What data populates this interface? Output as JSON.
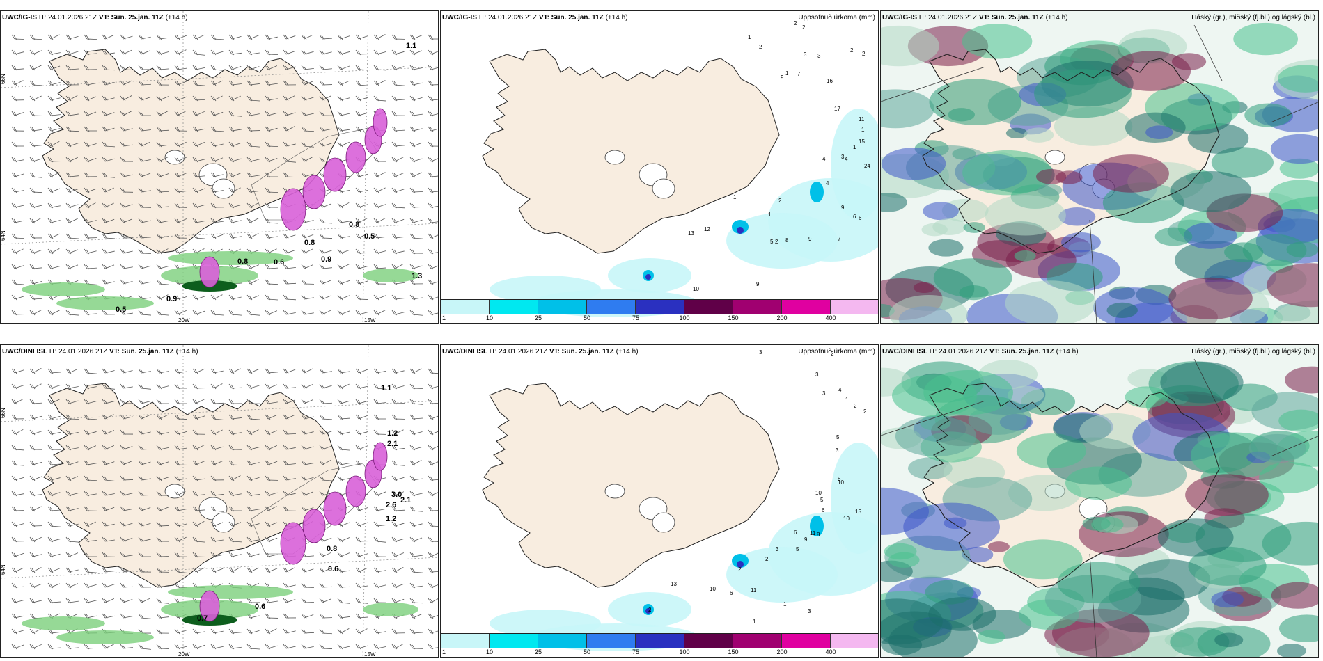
{
  "panels": [
    {
      "id": "wind-top",
      "model": "UWC/IG-IS",
      "it": "IT: 24.01.2026 21Z",
      "vt_label": "VT:",
      "vt": "Sun. 25.jan. 11Z",
      "lead": "(+14 h)",
      "right_title": "",
      "kind": "wind",
      "values": [
        "0.8",
        "0.6",
        "0.9",
        "0.8",
        "0.8",
        "0.5",
        "0.9",
        "0.5",
        "1.3",
        "1.1"
      ],
      "lat_labels": [
        "66N",
        "64N",
        "66N",
        "64N"
      ],
      "lon_labels": [
        "20W",
        "15W"
      ]
    },
    {
      "id": "precip-top",
      "model": "UWC/IG-IS",
      "it": "IT: 24.01.2026 21Z",
      "vt_label": "VT:",
      "vt": "Sun. 25.jan. 11Z",
      "lead": "(+14 h)",
      "right_title": "Uppsöfnuð úrkoma (mm)",
      "kind": "precip",
      "values": [
        "1",
        "2",
        "2",
        "2",
        "3",
        "3",
        "2",
        "2",
        "9",
        "1",
        "7",
        "16",
        "17",
        "11",
        "1",
        "1",
        "24",
        "15",
        "3",
        "4",
        "4",
        "4",
        "9",
        "6",
        "6",
        "7",
        "9",
        "5",
        "8",
        "2",
        "1",
        "2",
        "1",
        "12",
        "13",
        "9",
        "10"
      ]
    },
    {
      "id": "cloud-top",
      "model": "UWC/IG-IS",
      "it": "IT: 24.01.2026 21Z",
      "vt_label": "VT:",
      "vt": "Sun. 25.jan. 11Z",
      "lead": "(+14 h)",
      "right_title": "Háský (gr.), miðský (fj.bl.) og lágský (bl.)",
      "kind": "cloud"
    },
    {
      "id": "wind-bottom",
      "model": "UWC/DINI ISL",
      "it": "IT: 24.01.2026 21Z",
      "vt_label": "VT:",
      "vt": "Sun. 25.jan. 11Z",
      "lead": "(+14 h)",
      "right_title": "",
      "kind": "wind",
      "values": [
        "0.7",
        "0.6",
        "0.8",
        "0.6",
        "2.1",
        "1.2",
        "3.0",
        "2.6",
        "1.2",
        "2.1",
        "1.1"
      ],
      "lat_labels": [
        "66N",
        "64N",
        "66N",
        "64N"
      ],
      "lon_labels": [
        "20W",
        "15W"
      ]
    },
    {
      "id": "precip-bottom",
      "model": "UWC/DINI ISL",
      "it": "IT: 24.01.2026 21Z",
      "vt_label": "VT:",
      "vt": "Sun. 25.jan. 11Z",
      "lead": "(+14 h)",
      "right_title": "Uppsöfnuð úrkoma (mm)",
      "kind": "precip",
      "values": [
        "3",
        "2",
        "3",
        "4",
        "3",
        "2",
        "1",
        "2",
        "5",
        "3",
        "10",
        "10",
        "8",
        "5",
        "6",
        "9",
        "6",
        "15",
        "10",
        "11",
        "8",
        "5",
        "3",
        "2",
        "2",
        "11",
        "6",
        "1",
        "3",
        "1",
        "10",
        "13",
        "2"
      ]
    },
    {
      "id": "cloud-bottom",
      "model": "UWC/DINI ISL",
      "it": "IT: 24.01.2026 21Z",
      "vt_label": "VT:",
      "vt": "Sun. 25.jan. 11Z",
      "lead": "(+14 h)",
      "right_title": "Háský (gr.), miðský (fj.bl.) og lágský (bl.)",
      "kind": "cloud"
    }
  ],
  "precip_scale": {
    "labels": [
      "1",
      "10",
      "25",
      "50",
      "75",
      "100",
      "150",
      "200",
      "400"
    ],
    "colors": [
      "#c8f6f8",
      "#00e8f0",
      "#00c0e8",
      "#2f7cf0",
      "#2a30c0",
      "#600048",
      "#a00070",
      "#e000a0",
      "#f4b8f0"
    ]
  },
  "colors": {
    "land": "#f8ede0",
    "sea": "#ffffff",
    "coast": "#222222",
    "snow_cloud": "#d860d8",
    "green": "#1a9850"
  }
}
